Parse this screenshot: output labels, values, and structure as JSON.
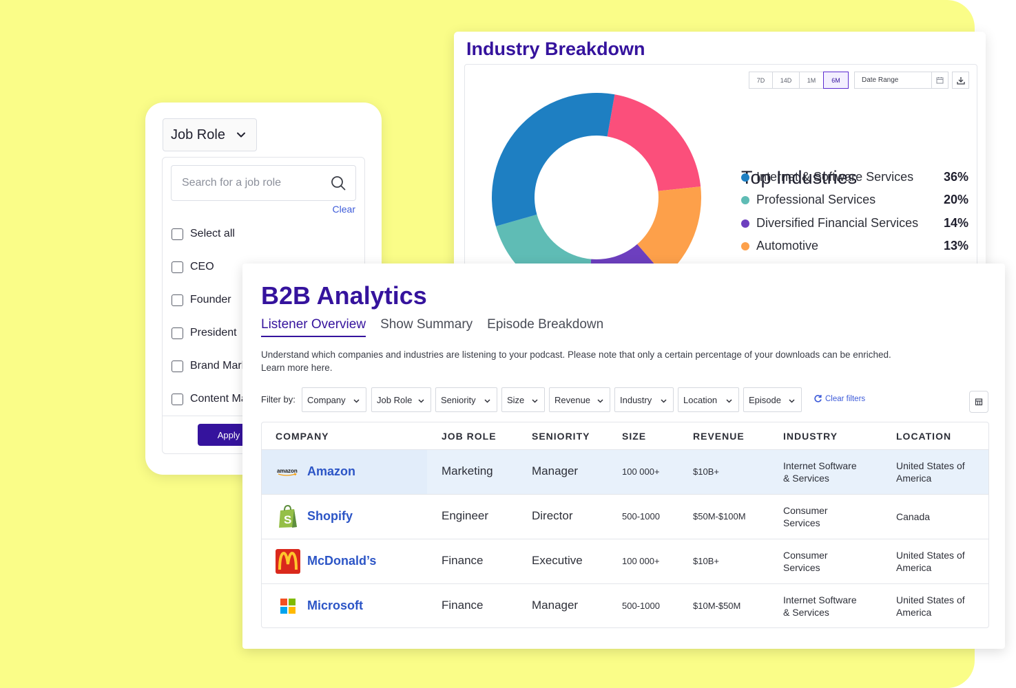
{
  "job_role": {
    "dropdown_label": "Job Role",
    "search_placeholder": "Search for a job role",
    "clear_label": "Clear",
    "options": [
      "Select all",
      "CEO",
      "Founder",
      "President",
      "Brand Marketing",
      "Content Marketing"
    ],
    "apply_label": "Apply"
  },
  "industry": {
    "title": "Industry Breakdown",
    "ranges": [
      "7D",
      "14D",
      "1M",
      "6M"
    ],
    "active_range": "6M",
    "date_range_label": "Date Range",
    "top_title": "Top Industries",
    "colors": {
      "internet": "#1e7fc2",
      "professional": "#5fbcb5",
      "financial": "#6d3fbf",
      "automotive": "#fda04a",
      "pink": "#fb4f7b"
    }
  },
  "chart_data": {
    "type": "pie",
    "categories": [
      "Internet & Software Services",
      "Professional Services",
      "Diversified Financial Services",
      "Automotive"
    ],
    "values": [
      36,
      20,
      14,
      13
    ],
    "title": "Top Industries"
  },
  "b2b": {
    "title": "B2B Analytics",
    "tabs": [
      "Listener Overview",
      "Show Summary",
      "Episode Breakdown"
    ],
    "active_tab": "Listener Overview",
    "description": "Understand which companies and industries are listening to your podcast. Please note that only a certain percentage of your downloads can be enriched.",
    "learn_more": "Learn more here.",
    "filter_label": "Filter by:",
    "filters": [
      "Company",
      "Job Role",
      "Seniority",
      "Size",
      "Revenue",
      "Industry",
      "Location",
      "Episode"
    ],
    "clear_filters": "Clear filters",
    "columns": [
      "COMPANY",
      "JOB ROLE",
      "SENIORITY",
      "SIZE",
      "REVENUE",
      "INDUSTRY",
      "LOCATION"
    ],
    "rows": [
      {
        "company": "Amazon",
        "logo_text": "amazon",
        "job_role": "Marketing",
        "seniority": "Manager",
        "size": "100 000+",
        "revenue": "$10B+",
        "industry": [
          "Internet Software",
          "& Services"
        ],
        "location": [
          "United States of",
          "America"
        ]
      },
      {
        "company": "Shopify",
        "logo_text": "S",
        "job_role": "Engineer",
        "seniority": "Director",
        "size": "500-1000",
        "revenue": "$50M-$100M",
        "industry": [
          "Consumer",
          "Services"
        ],
        "location": [
          "Canada",
          ""
        ]
      },
      {
        "company": "McDonald’s",
        "logo_text": "M",
        "job_role": "Finance",
        "seniority": "Executive",
        "size": "100 000+",
        "revenue": "$10B+",
        "industry": [
          "Consumer",
          "Services"
        ],
        "location": [
          "United States of",
          "America"
        ]
      },
      {
        "company": "Microsoft",
        "logo_text": "",
        "job_role": "Finance",
        "seniority": "Manager",
        "size": "500-1000",
        "revenue": "$10M-$50M",
        "industry": [
          "Internet Software",
          "& Services"
        ],
        "location": [
          "United States of",
          "America"
        ]
      }
    ]
  }
}
